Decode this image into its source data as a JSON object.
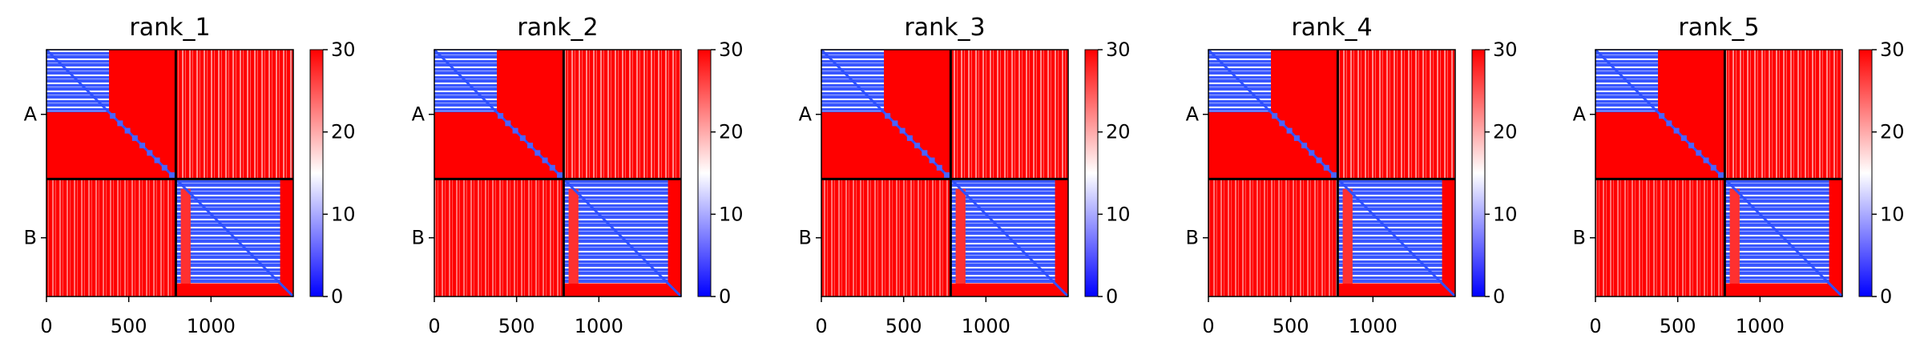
{
  "chart_data": {
    "type": "heatmap",
    "colormap": {
      "name": "bwr",
      "low_color": "#0000ff",
      "mid_color": "#ffffff",
      "high_color": "#ff0000",
      "range": [
        0,
        30
      ]
    },
    "chain_labels": [
      "A",
      "B"
    ],
    "chain_boundary": 786,
    "total_length": 1500,
    "xticks": [
      0,
      500,
      1000
    ],
    "xtick_labels": [
      "0",
      "500",
      "1000"
    ],
    "colorbar_ticks": [
      0,
      10,
      20,
      30
    ],
    "colorbar_tick_labels": [
      "0",
      "10",
      "20",
      "30"
    ],
    "low_error_blocks": [
      {
        "chain": "A",
        "from": 0,
        "to": 380
      },
      {
        "chain": "B",
        "from": 786,
        "to": 1420
      }
    ],
    "panels": [
      {
        "title": "rank_1"
      },
      {
        "title": "rank_2"
      },
      {
        "title": "rank_3"
      },
      {
        "title": "rank_4"
      },
      {
        "title": "rank_5"
      }
    ]
  }
}
